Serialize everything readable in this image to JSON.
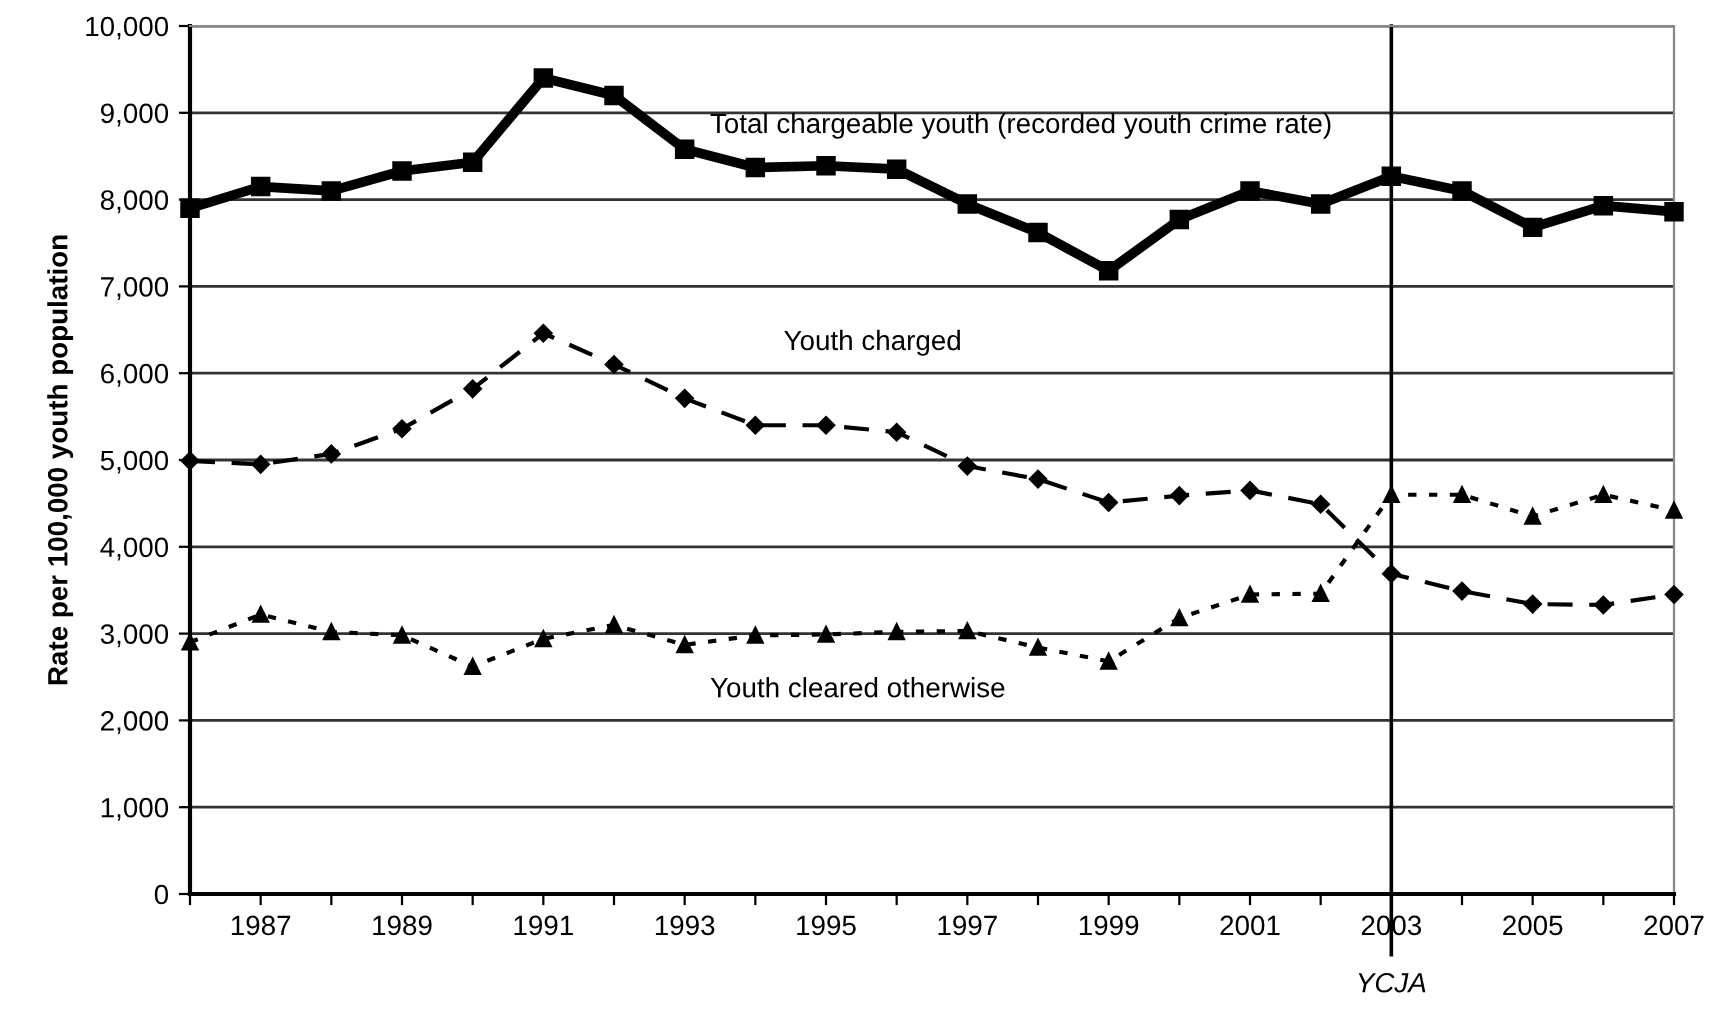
{
  "chart_data": {
    "type": "line",
    "ylabel": "Rate per 100,000 youth population",
    "x": [
      1986,
      1987,
      1988,
      1989,
      1990,
      1991,
      1992,
      1993,
      1994,
      1995,
      1996,
      1997,
      1998,
      1999,
      2000,
      2001,
      2002,
      2003,
      2004,
      2005,
      2006,
      2007
    ],
    "series": [
      {
        "name": "Total chargeable youth (recorded youth crime rate)",
        "color": "#000000",
        "marker": "square",
        "line_style": "solid",
        "values": [
          7900,
          8150,
          8100,
          8330,
          8430,
          9400,
          9200,
          8580,
          8370,
          8390,
          8350,
          7950,
          7620,
          7180,
          7770,
          8100,
          7950,
          8270,
          8100,
          7680,
          7930,
          7860
        ]
      },
      {
        "name": "Youth charged",
        "color": "#000000",
        "marker": "diamond",
        "line_style": "dashed",
        "values": [
          4990,
          4950,
          5070,
          5360,
          5820,
          6460,
          6100,
          5710,
          5400,
          5400,
          5320,
          4930,
          4780,
          4510,
          4590,
          4650,
          4490,
          3690,
          3490,
          3340,
          3330,
          3450
        ]
      },
      {
        "name": "Youth cleared otherwise",
        "color": "#000000",
        "marker": "triangle",
        "line_style": "dotted",
        "values": [
          2900,
          3220,
          3020,
          2980,
          2620,
          2940,
          3100,
          2870,
          2980,
          2990,
          3020,
          3030,
          2840,
          2680,
          3180,
          3450,
          3460,
          4600,
          4600,
          4350,
          4600,
          4420
        ]
      }
    ],
    "xlim": [
      1986,
      2007
    ],
    "xticks": [
      {
        "value": 1986,
        "label": null
      },
      1987,
      {
        "value": 1988,
        "label": null
      },
      1989,
      {
        "value": 1990,
        "label": null
      },
      1991,
      {
        "value": 1992,
        "label": null
      },
      1993,
      {
        "value": 1994,
        "label": null
      },
      1995,
      {
        "value": 1996,
        "label": null
      },
      1997,
      {
        "value": 1998,
        "label": null
      },
      1999,
      {
        "value": 2000,
        "label": null
      },
      2001,
      {
        "value": 2002,
        "label": null
      },
      2003,
      {
        "value": 2004,
        "label": null
      },
      2005,
      {
        "value": 2006,
        "label": null
      },
      2007
    ],
    "ylim": [
      0,
      10000
    ],
    "yticks": [
      {
        "value": 0,
        "label": "0"
      },
      {
        "value": 1000,
        "label": "1,000"
      },
      {
        "value": 2000,
        "label": "2,000"
      },
      {
        "value": 3000,
        "label": "3,000"
      },
      {
        "value": 4000,
        "label": "4,000"
      },
      {
        "value": 5000,
        "label": "5,000"
      },
      {
        "value": 6000,
        "label": "6,000"
      },
      {
        "value": 7000,
        "label": "7,000"
      },
      {
        "value": 8000,
        "label": "8,000"
      },
      {
        "value": 9000,
        "label": "9,000"
      },
      {
        "value": 10000,
        "label": "10,000"
      }
    ],
    "grid": "y",
    "legend": false,
    "ref_lines": [
      {
        "axis": "x",
        "value": 2003,
        "label": "YCJA",
        "color": "#000000"
      }
    ]
  }
}
